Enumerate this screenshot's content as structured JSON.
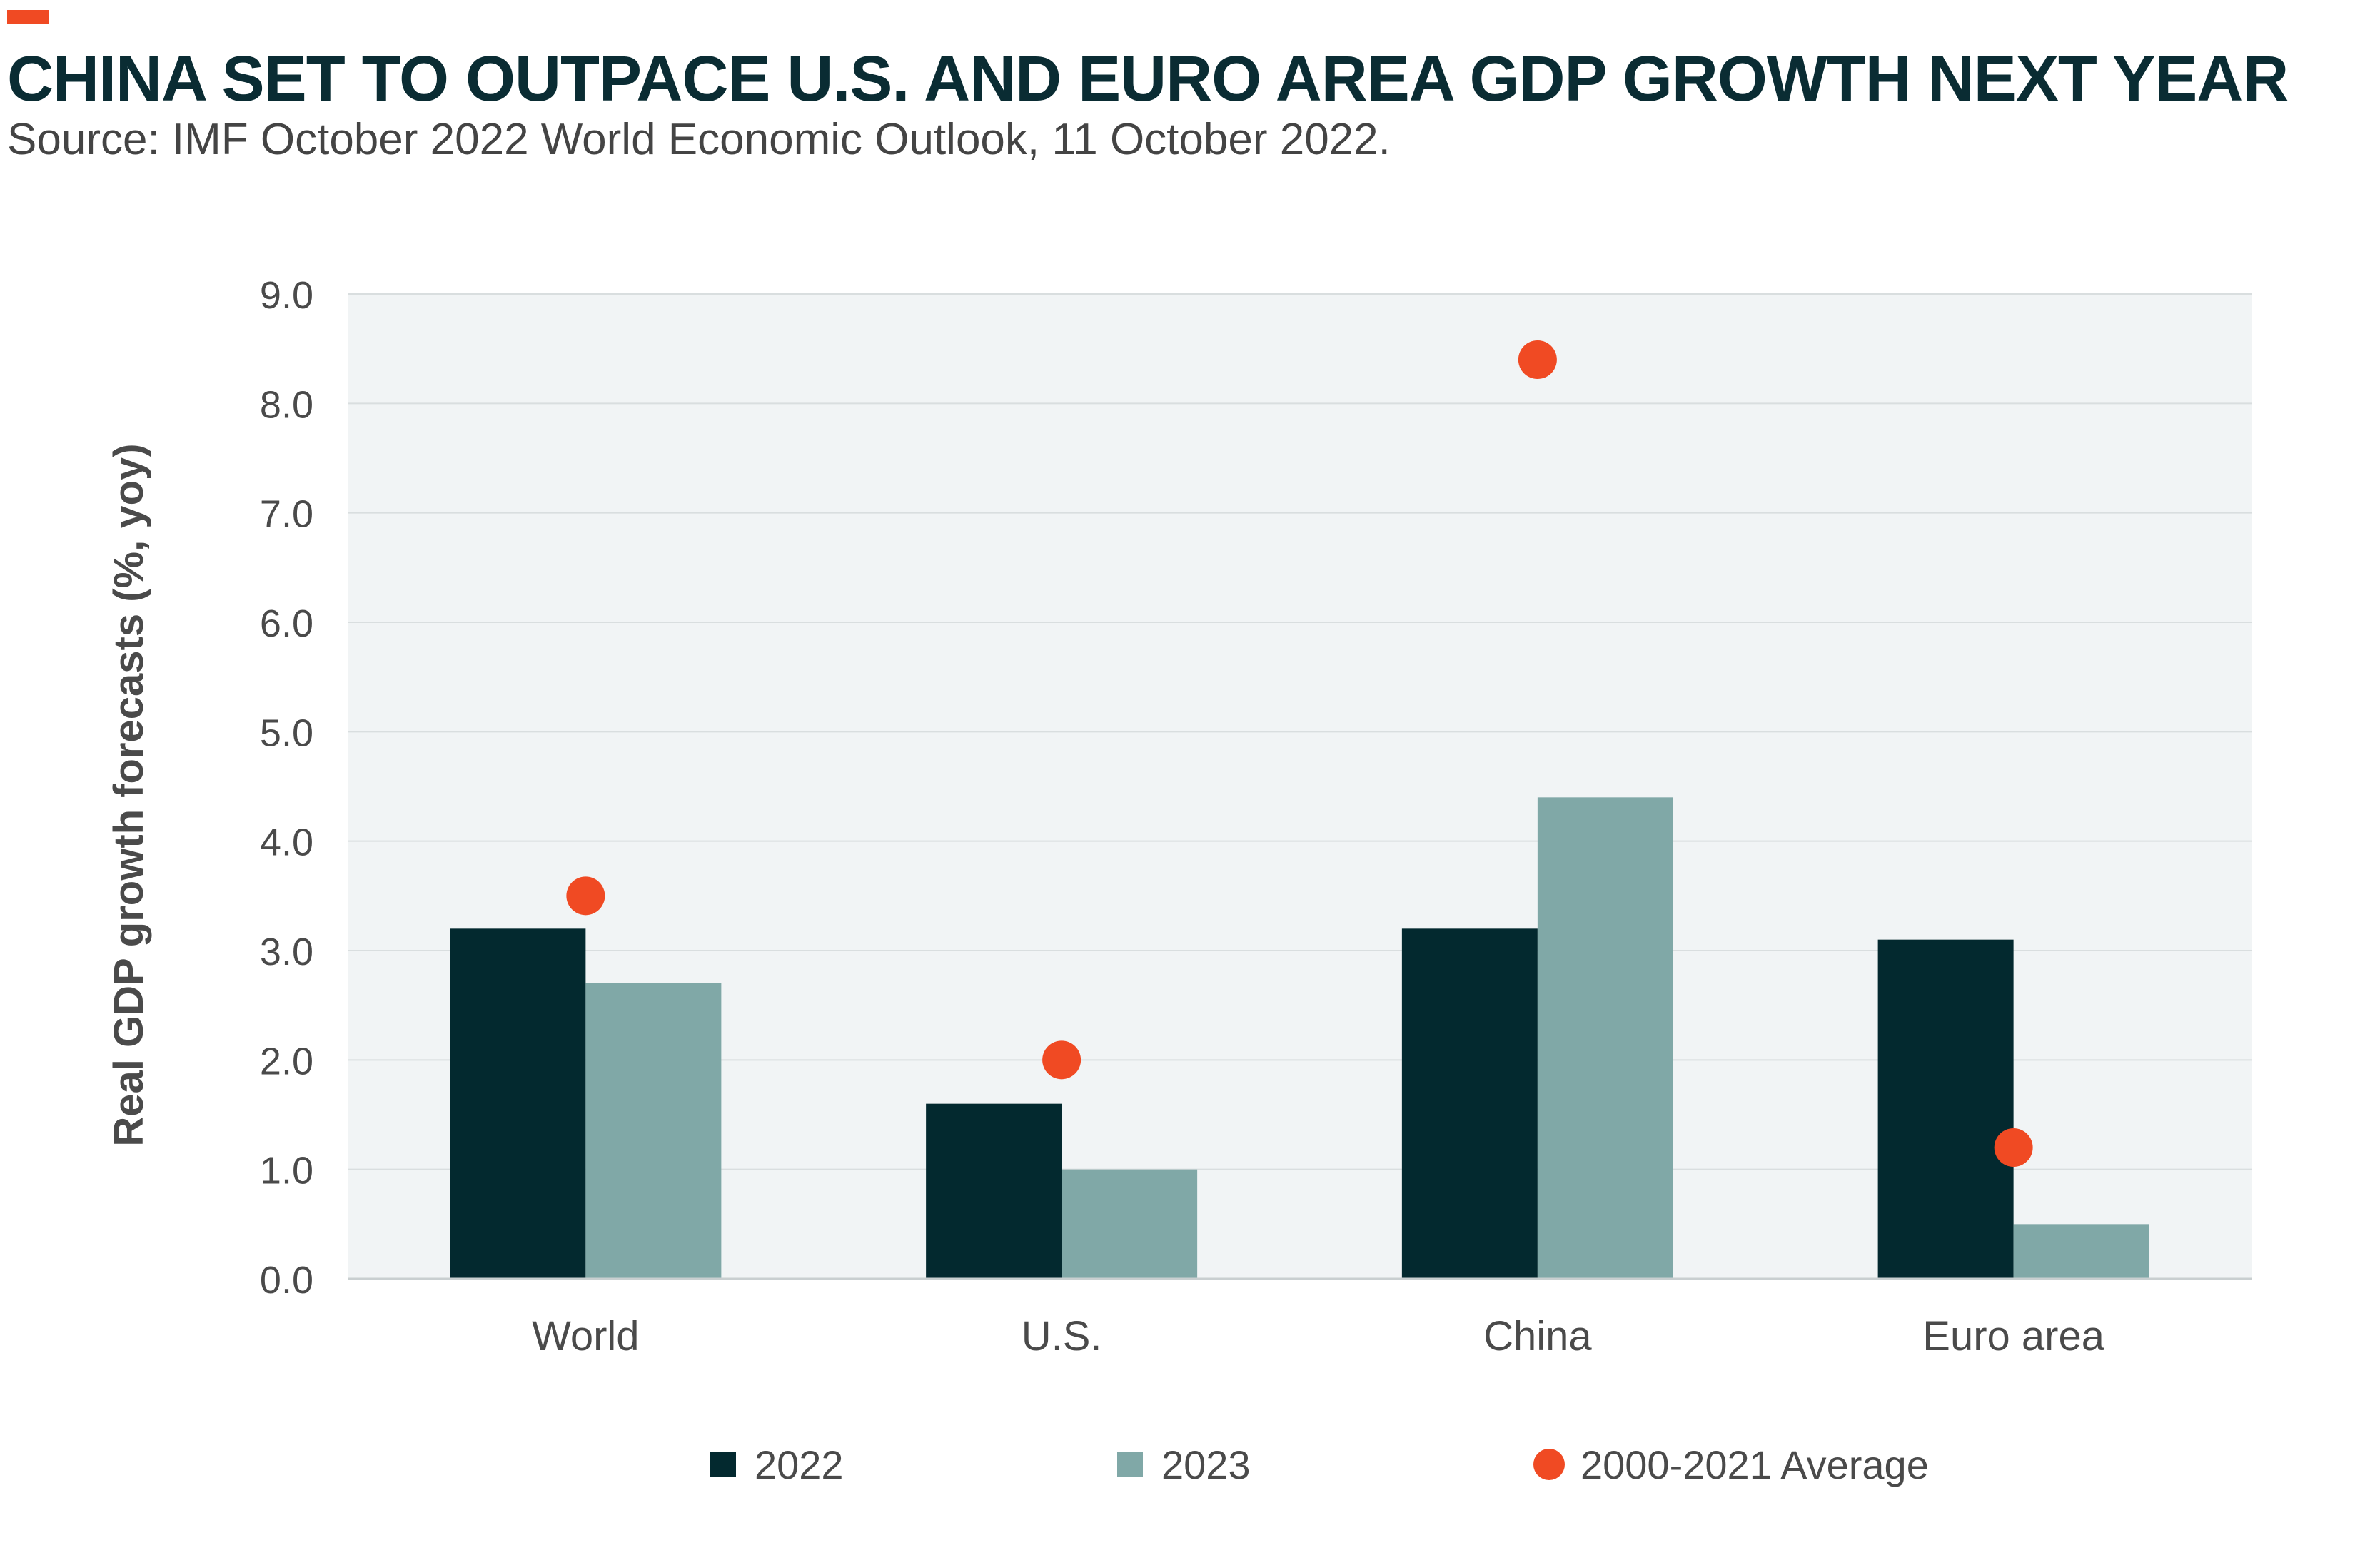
{
  "header": {
    "title": "CHINA SET TO OUTPACE U.S. AND EURO AREA GDP GROWTH NEXT YEAR",
    "subtitle": "Source: IMF October 2022 World Economic Outlook, 11 October 2022."
  },
  "colors": {
    "accent": "#f04a23",
    "series_2022": "#03292f",
    "series_2023": "#80a8a7",
    "average": "#f04a23",
    "plot_bg": "#f1f4f5",
    "grid": "#d9dedf"
  },
  "chart_data": {
    "type": "bar",
    "title": "",
    "xlabel": "",
    "ylabel": "Real GDP growth forecasts (%, yoy)",
    "ylim": [
      0,
      9
    ],
    "yticks": [
      "0.0",
      "1.0",
      "2.0",
      "3.0",
      "4.0",
      "5.0",
      "6.0",
      "7.0",
      "8.0",
      "9.0"
    ],
    "grid": true,
    "legend_position": "bottom",
    "categories": [
      "World",
      "U.S.",
      "China",
      "Euro area"
    ],
    "series": [
      {
        "name": "2022",
        "kind": "bar",
        "values": [
          3.2,
          1.6,
          3.2,
          3.1
        ]
      },
      {
        "name": "2023",
        "kind": "bar",
        "values": [
          2.7,
          1.0,
          4.4,
          0.5
        ]
      },
      {
        "name": "2000-2021 Average",
        "kind": "dot",
        "values": [
          3.5,
          2.0,
          8.4,
          1.2
        ]
      }
    ]
  }
}
